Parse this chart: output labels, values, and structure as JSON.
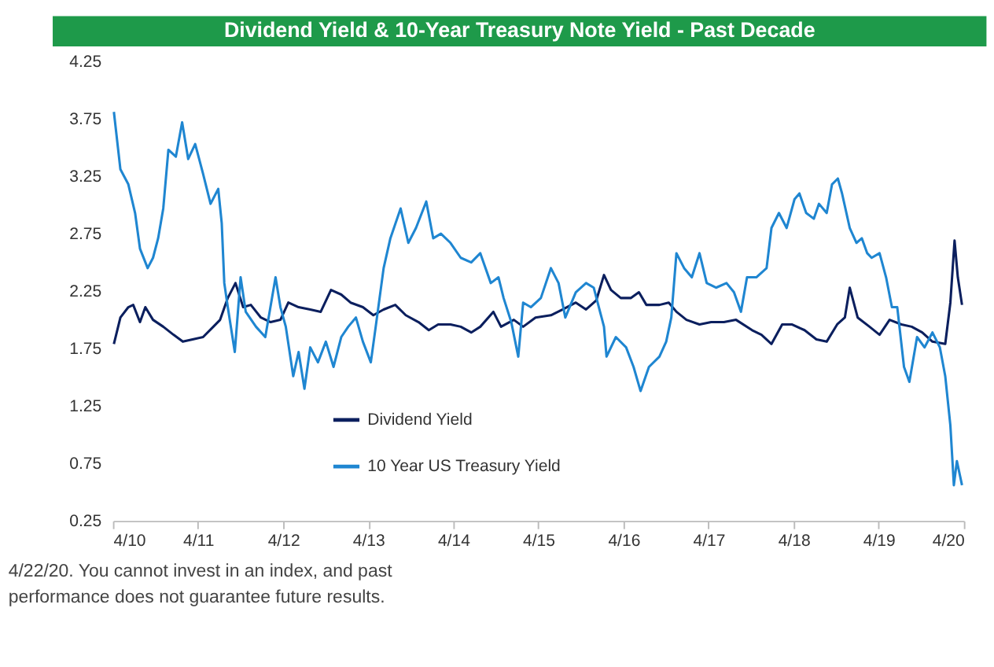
{
  "chart_data": {
    "type": "line",
    "title": "Dividend Yield & 10-Year Treasury Note Yield - Past Decade",
    "annotations": [
      "4/22/20. You cannot invest in an index, and past",
      "performance does not guarantee future results."
    ],
    "xlim": [
      "2010-04-01",
      "2020-04-01"
    ],
    "xticks": [
      {
        "value": "2010-04-01",
        "label": "4/10"
      },
      {
        "value": "2011-04-01",
        "label": "4/11"
      },
      {
        "value": "2012-04-01",
        "label": "4/12"
      },
      {
        "value": "2013-04-01",
        "label": "4/13"
      },
      {
        "value": "2014-04-01",
        "label": "4/14"
      },
      {
        "value": "2015-04-01",
        "label": "4/15"
      },
      {
        "value": "2016-04-01",
        "label": "4/16"
      },
      {
        "value": "2017-04-01",
        "label": "4/17"
      },
      {
        "value": "2018-04-01",
        "label": "4/18"
      },
      {
        "value": "2019-04-01",
        "label": "4/19"
      },
      {
        "value": "2020-04-01",
        "label": "4/20"
      }
    ],
    "ylim": [
      0.25,
      4.25
    ],
    "yticks": [
      0.25,
      0.75,
      1.25,
      1.75,
      2.25,
      2.75,
      3.25,
      3.75,
      4.25
    ],
    "grid": false,
    "legend": "bottom left",
    "line_style": "solid",
    "marker": "none",
    "series": [
      {
        "name": "Dividend Yield",
        "color": "#0b1f5e",
        "x": [
          "2010-04-05",
          "2010-05-03",
          "2010-06-06",
          "2010-06-27",
          "2010-07-26",
          "2010-08-18",
          "2010-09-20",
          "2010-11-03",
          "2010-12-17",
          "2011-01-26",
          "2011-03-09",
          "2011-04-23",
          "2011-06-06",
          "2011-07-05",
          "2011-08-07",
          "2011-09-09",
          "2011-10-12",
          "2011-11-14",
          "2011-12-27",
          "2012-02-07",
          "2012-03-20",
          "2012-04-23",
          "2012-06-06",
          "2012-07-26",
          "2012-09-09",
          "2012-10-23",
          "2012-12-06",
          "2013-01-15",
          "2013-03-09",
          "2013-04-23",
          "2013-06-06",
          "2013-07-26",
          "2013-09-09",
          "2013-11-03",
          "2013-12-17",
          "2014-01-26",
          "2014-03-20",
          "2014-05-03",
          "2014-06-17",
          "2014-07-26",
          "2014-09-20",
          "2014-10-23",
          "2014-12-17",
          "2015-01-26",
          "2015-03-20",
          "2015-05-25",
          "2015-07-15",
          "2015-09-09",
          "2015-10-23",
          "2015-12-06",
          "2016-01-08",
          "2016-02-07",
          "2016-03-20",
          "2016-05-03",
          "2016-06-06",
          "2016-07-08",
          "2016-09-02",
          "2016-10-12",
          "2016-11-14",
          "2016-12-27",
          "2017-02-21",
          "2017-04-12",
          "2017-06-06",
          "2017-07-28",
          "2017-10-05",
          "2017-11-14",
          "2017-12-27",
          "2018-02-11",
          "2018-03-24",
          "2018-05-18",
          "2018-07-08",
          "2018-08-21",
          "2018-10-05",
          "2018-11-07",
          "2018-11-28",
          "2019-01-01",
          "2019-02-21",
          "2019-04-05",
          "2019-05-18",
          "2019-07-08",
          "2019-08-21",
          "2019-10-05",
          "2019-11-18",
          "2020-01-12",
          "2020-02-03",
          "2020-02-21",
          "2020-03-06",
          "2020-03-24"
        ],
        "values": [
          1.79,
          2.02,
          2.11,
          2.13,
          1.98,
          2.11,
          2.0,
          1.94,
          1.87,
          1.81,
          1.83,
          1.85,
          1.94,
          2.0,
          2.19,
          2.32,
          2.11,
          2.13,
          2.02,
          1.98,
          2.0,
          2.15,
          2.11,
          2.09,
          2.07,
          2.26,
          2.22,
          2.15,
          2.11,
          2.04,
          2.09,
          2.13,
          2.04,
          1.98,
          1.91,
          1.96,
          1.96,
          1.94,
          1.89,
          1.94,
          2.07,
          1.94,
          2.0,
          1.94,
          2.02,
          2.04,
          2.09,
          2.15,
          2.09,
          2.17,
          2.39,
          2.26,
          2.19,
          2.19,
          2.24,
          2.13,
          2.13,
          2.15,
          2.07,
          2.0,
          1.96,
          1.98,
          1.98,
          2.0,
          1.91,
          1.87,
          1.79,
          1.96,
          1.96,
          1.91,
          1.83,
          1.81,
          1.96,
          2.02,
          2.28,
          2.02,
          1.94,
          1.87,
          2.0,
          1.96,
          1.94,
          1.89,
          1.81,
          1.79,
          2.15,
          2.69,
          2.37,
          2.13
        ]
      },
      {
        "name": "10 Year US Treasury Yield",
        "color": "#1f86d1",
        "x": [
          "2010-04-05",
          "2010-05-03",
          "2010-06-06",
          "2010-07-05",
          "2010-07-26",
          "2010-08-28",
          "2010-09-20",
          "2010-10-12",
          "2010-11-03",
          "2010-11-25",
          "2010-12-27",
          "2011-01-23",
          "2011-02-18",
          "2011-03-20",
          "2011-04-23",
          "2011-05-25",
          "2011-06-27",
          "2011-07-12",
          "2011-07-23",
          "2011-08-07",
          "2011-09-06",
          "2011-10-01",
          "2011-10-23",
          "2011-12-06",
          "2012-01-15",
          "2012-02-28",
          "2012-03-20",
          "2012-04-12",
          "2012-05-14",
          "2012-06-06",
          "2012-07-01",
          "2012-07-26",
          "2012-08-28",
          "2012-10-01",
          "2012-11-03",
          "2012-12-06",
          "2013-01-05",
          "2013-02-07",
          "2013-03-09",
          "2013-04-12",
          "2013-05-03",
          "2013-06-06",
          "2013-07-05",
          "2013-08-18",
          "2013-09-20",
          "2013-10-23",
          "2013-12-06",
          "2014-01-05",
          "2014-02-07",
          "2014-03-20",
          "2014-05-03",
          "2014-06-17",
          "2014-07-26",
          "2014-09-09",
          "2014-10-12",
          "2014-11-03",
          "2014-12-06",
          "2015-01-05",
          "2015-01-26",
          "2015-02-28",
          "2015-04-12",
          "2015-05-25",
          "2015-06-27",
          "2015-07-26",
          "2015-09-09",
          "2015-10-23",
          "2015-11-25",
          "2015-12-17",
          "2016-01-08",
          "2016-01-19",
          "2016-02-28",
          "2016-04-12",
          "2016-05-14",
          "2016-06-13",
          "2016-07-19",
          "2016-09-02",
          "2016-10-01",
          "2016-10-23",
          "2016-11-14",
          "2016-12-17",
          "2017-01-19",
          "2017-02-21",
          "2017-03-24",
          "2017-05-03",
          "2017-06-17",
          "2017-07-19",
          "2017-08-18",
          "2017-09-13",
          "2017-10-23",
          "2017-12-06",
          "2017-12-27",
          "2018-01-28",
          "2018-03-02",
          "2018-04-05",
          "2018-04-26",
          "2018-05-25",
          "2018-06-27",
          "2018-07-19",
          "2018-08-21",
          "2018-09-13",
          "2018-10-08",
          "2018-10-26",
          "2018-11-28",
          "2018-12-27",
          "2019-01-19",
          "2019-02-11",
          "2019-03-02",
          "2019-04-05",
          "2019-05-03",
          "2019-05-28",
          "2019-06-20",
          "2019-07-19",
          "2019-08-11",
          "2019-09-13",
          "2019-10-15",
          "2019-11-18",
          "2019-12-20",
          "2020-01-12",
          "2020-02-03",
          "2020-02-18",
          "2020-03-02",
          "2020-03-24"
        ],
        "values": [
          3.81,
          3.31,
          3.18,
          2.93,
          2.62,
          2.45,
          2.54,
          2.71,
          2.97,
          3.48,
          3.42,
          3.72,
          3.4,
          3.53,
          3.27,
          3.01,
          3.14,
          2.84,
          2.32,
          2.11,
          1.72,
          2.37,
          2.07,
          1.94,
          1.85,
          2.37,
          2.11,
          1.94,
          1.51,
          1.72,
          1.4,
          1.76,
          1.63,
          1.81,
          1.59,
          1.85,
          1.94,
          2.02,
          1.81,
          1.63,
          1.94,
          2.45,
          2.71,
          2.97,
          2.67,
          2.8,
          3.03,
          2.71,
          2.75,
          2.67,
          2.54,
          2.5,
          2.58,
          2.32,
          2.37,
          2.19,
          1.98,
          1.68,
          2.15,
          2.11,
          2.19,
          2.45,
          2.32,
          2.02,
          2.24,
          2.32,
          2.28,
          2.11,
          1.94,
          1.68,
          1.85,
          1.76,
          1.59,
          1.38,
          1.59,
          1.68,
          1.81,
          2.02,
          2.58,
          2.45,
          2.37,
          2.58,
          2.32,
          2.28,
          2.32,
          2.24,
          2.07,
          2.37,
          2.37,
          2.45,
          2.8,
          2.93,
          2.8,
          3.05,
          3.1,
          2.93,
          2.88,
          3.01,
          2.93,
          3.18,
          3.23,
          3.1,
          2.8,
          2.67,
          2.71,
          2.58,
          2.54,
          2.58,
          2.37,
          2.11,
          2.11,
          1.59,
          1.46,
          1.85,
          1.76,
          1.89,
          1.76,
          1.51,
          1.08,
          0.56,
          0.77,
          0.56
        ]
      }
    ]
  }
}
